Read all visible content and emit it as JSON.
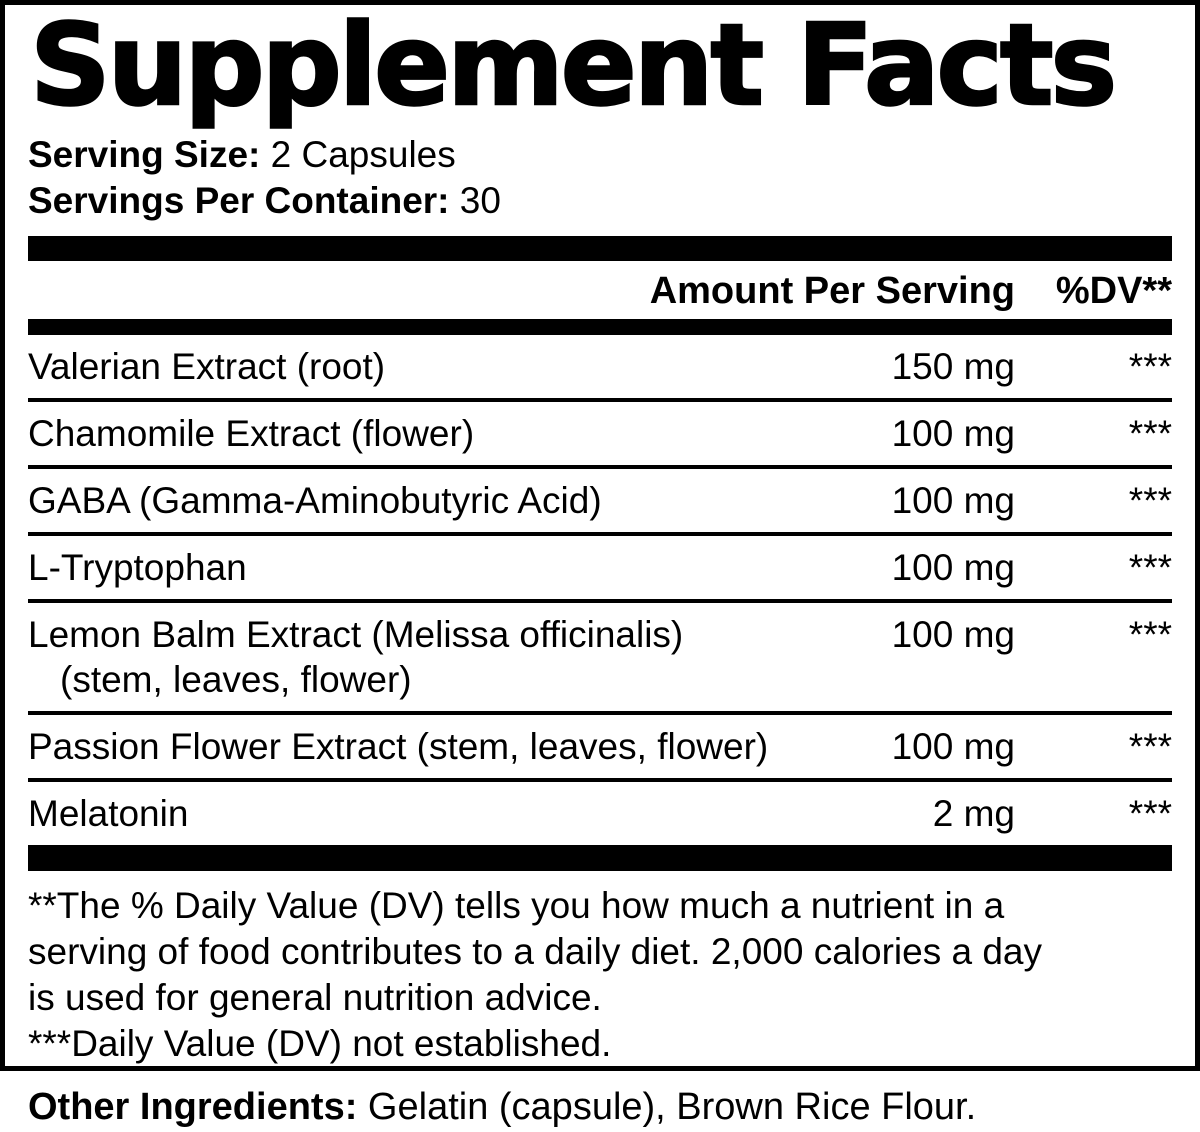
{
  "label": {
    "title": "Supplement Facts",
    "serving": {
      "size_label": "Serving Size:",
      "size_value": " 2 Capsules",
      "container_label": "Servings Per Container:",
      "container_value": " 30"
    },
    "columns": {
      "amount_header": "Amount Per Serving",
      "dv_header": "%DV**"
    },
    "ingredients": [
      {
        "name": "Valerian Extract (root)",
        "amount": "150 mg",
        "dv": "***"
      },
      {
        "name": "Chamomile Extract (flower)",
        "amount": "100 mg",
        "dv": "***"
      },
      {
        "name": "GABA (Gamma-Aminobutyric Acid)",
        "amount": "100 mg",
        "dv": "***"
      },
      {
        "name": "L-Tryptophan",
        "amount": "100 mg",
        "dv": "***"
      },
      {
        "name": "Lemon Balm Extract (Melissa officinalis)",
        "name2": "(stem, leaves, flower)",
        "amount": "100 mg",
        "dv": "***"
      },
      {
        "name": "Passion Flower Extract (stem, leaves, flower)",
        "amount": "100 mg",
        "dv": "***"
      },
      {
        "name": "Melatonin",
        "amount": "2 mg",
        "dv": "***"
      }
    ],
    "footnotes": {
      "daily_value": "**The % Daily Value (DV) tells you how much a nutrient in a\nserving of food contributes to a daily diet. 2,000 calories a day\nis used for general nutrition advice.",
      "not_established": "***Daily Value (DV) not established."
    },
    "other_ingredients": {
      "label": "Other Ingredients:",
      "value": " Gelatin (capsule), Brown Rice Flour."
    },
    "colors": {
      "text": "#000000",
      "background": "#ffffff"
    }
  }
}
